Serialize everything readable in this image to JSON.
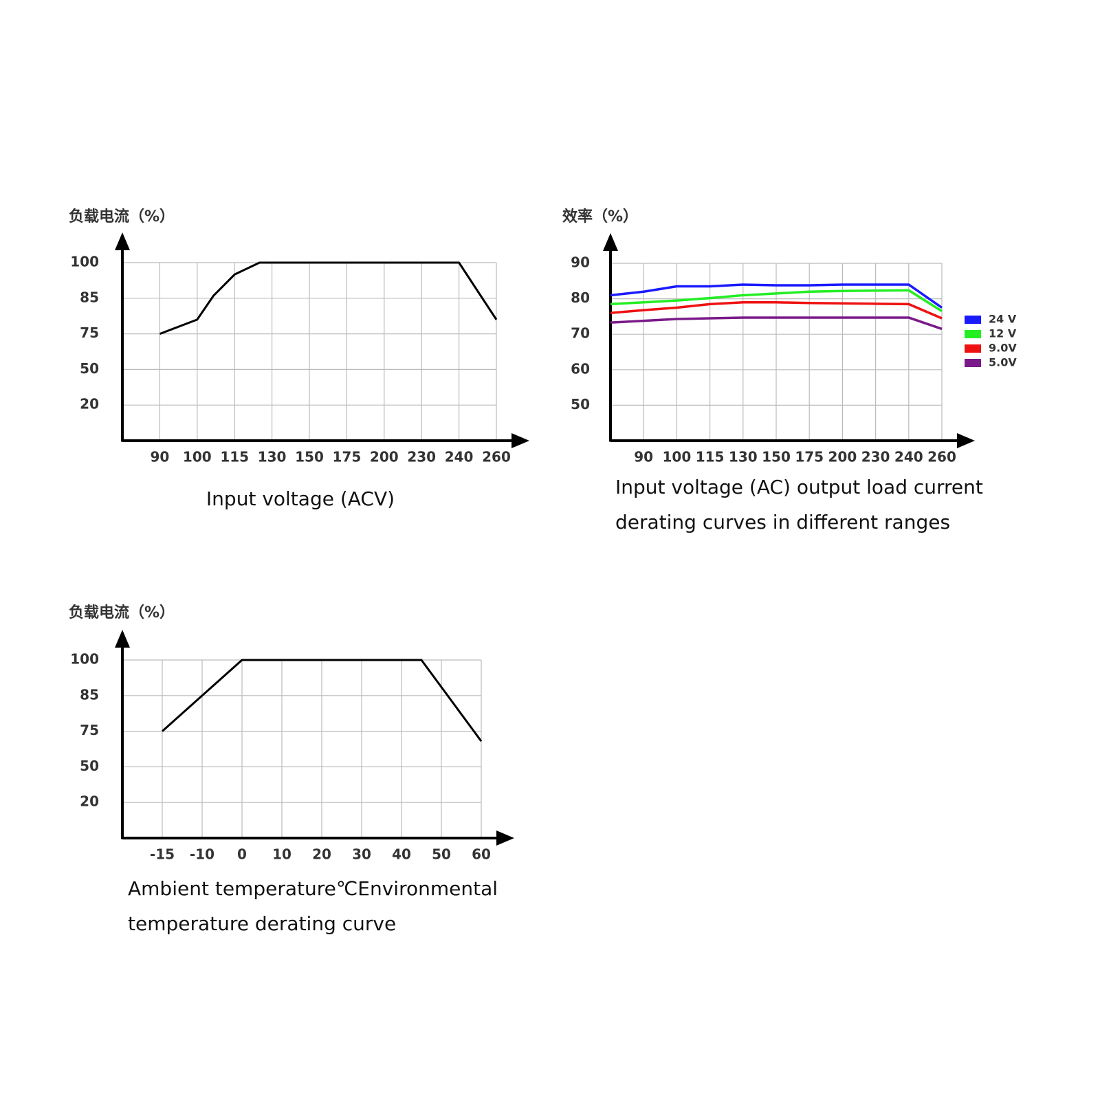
{
  "chart_data": [
    {
      "type": "line",
      "y_label": "负载电流（%）",
      "caption": [
        "Input voltage (ACV)"
      ],
      "x": [
        90,
        100,
        106.5,
        115,
        125,
        150,
        240,
        260
      ],
      "values": [
        75,
        79,
        86,
        95,
        100,
        100,
        100,
        79
      ],
      "color": "#000000",
      "xlim": [
        80,
        260
      ],
      "xticks": [
        90,
        100,
        115,
        130,
        150,
        175,
        200,
        230,
        240,
        260
      ],
      "ylim": [
        0,
        100
      ],
      "yticks": [
        100,
        85,
        75,
        50,
        20
      ],
      "grid": true
    },
    {
      "type": "line",
      "y_label": "效率（%）",
      "caption": [
        "Input voltage (AC) output load current",
        "derating curves in different ranges"
      ],
      "x": [
        80,
        90,
        100,
        115,
        130,
        150,
        175,
        200,
        230,
        240,
        260
      ],
      "series": [
        {
          "name": "24 V",
          "color": "#1a1aff",
          "values": [
            81,
            82,
            83.5,
            83.5,
            84,
            83.8,
            83.8,
            84,
            84,
            84,
            77.5
          ]
        },
        {
          "name": "12 V",
          "color": "#22ee22",
          "values": [
            78.5,
            79,
            79.5,
            80.2,
            81,
            81.5,
            82,
            82.2,
            82.3,
            82.4,
            76.5
          ]
        },
        {
          "name": "9.0V",
          "color": "#ee1111",
          "values": [
            76,
            76.8,
            77.5,
            78.5,
            79,
            79,
            78.8,
            78.7,
            78.6,
            78.5,
            74.5
          ]
        },
        {
          "name": "5.0V",
          "color": "#7a1a8a",
          "values": [
            73.3,
            73.8,
            74.3,
            74.5,
            74.7,
            74.7,
            74.7,
            74.7,
            74.7,
            74.7,
            71.5
          ]
        }
      ],
      "xlim": [
        80,
        260
      ],
      "xticks": [
        90,
        100,
        115,
        130,
        150,
        175,
        200,
        230,
        240,
        260
      ],
      "ylim": [
        40,
        90
      ],
      "yticks": [
        90,
        80,
        70,
        60,
        50
      ],
      "grid": true,
      "legend": "right"
    },
    {
      "type": "line",
      "y_label": "负载电流（%）",
      "caption": [
        "Ambient temperature℃Environmental",
        "temperature derating curve"
      ],
      "x": [
        -15,
        0,
        45,
        60
      ],
      "values": [
        75,
        100,
        100,
        68
      ],
      "color": "#000000",
      "xlim": [
        -20,
        60
      ],
      "xticks": [
        -15,
        -10,
        0,
        10,
        20,
        30,
        40,
        50,
        60
      ],
      "ylim": [
        0,
        100
      ],
      "yticks": [
        100,
        85,
        75,
        50,
        20
      ],
      "grid": true
    }
  ]
}
